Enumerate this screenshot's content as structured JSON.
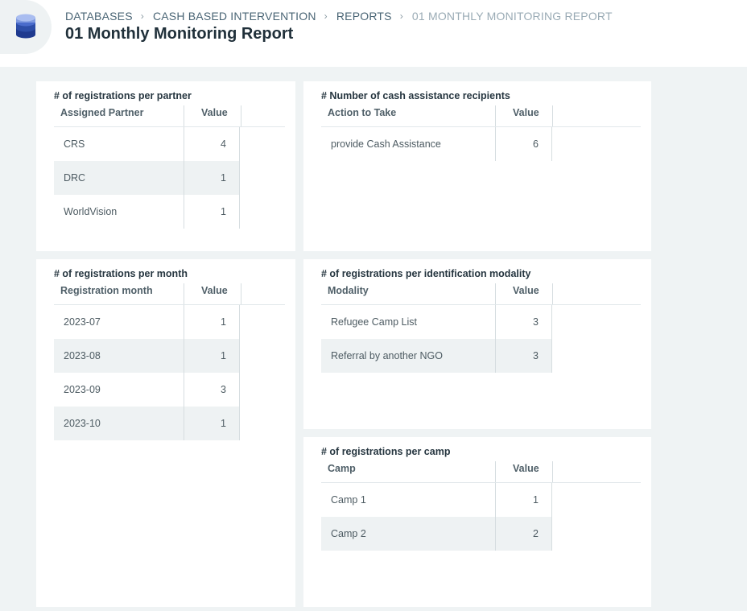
{
  "breadcrumb": {
    "items": [
      "DATABASES",
      "CASH BASED INTERVENTION",
      "REPORTS"
    ],
    "current": "01 MONTHLY MONITORING REPORT"
  },
  "page": {
    "title": "01 Monthly Monitoring Report"
  },
  "icon": "database-icon",
  "colors": {
    "accent": "#3b5bb0",
    "page_bg": "#eff3f4",
    "alt_row": "#eef2f3"
  },
  "cards": {
    "partner": {
      "title": "# of registrations per partner",
      "headers": [
        "Assigned Partner",
        "Value"
      ],
      "rows": [
        [
          "CRS",
          "4"
        ],
        [
          "DRC",
          "1"
        ],
        [
          "WorldVision",
          "1"
        ]
      ]
    },
    "cash": {
      "title": "# Number of cash assistance recipients",
      "headers": [
        "Action to Take",
        "Value"
      ],
      "rows": [
        [
          "provide Cash Assistance",
          "6"
        ]
      ]
    },
    "month": {
      "title": "# of registrations per month",
      "headers": [
        "Registration month",
        "Value"
      ],
      "rows": [
        [
          "2023-07",
          "1"
        ],
        [
          "2023-08",
          "1"
        ],
        [
          "2023-09",
          "3"
        ],
        [
          "2023-10",
          "1"
        ]
      ]
    },
    "modality": {
      "title": "# of registrations per identification modality",
      "headers": [
        "Modality",
        "Value"
      ],
      "rows": [
        [
          "Refugee Camp List",
          "3"
        ],
        [
          "Referral by another NGO",
          "3"
        ]
      ]
    },
    "camp": {
      "title": "# of registrations per camp",
      "headers": [
        "Camp",
        "Value"
      ],
      "rows": [
        [
          "Camp 1",
          "1"
        ],
        [
          "Camp 2",
          "2"
        ]
      ]
    }
  }
}
